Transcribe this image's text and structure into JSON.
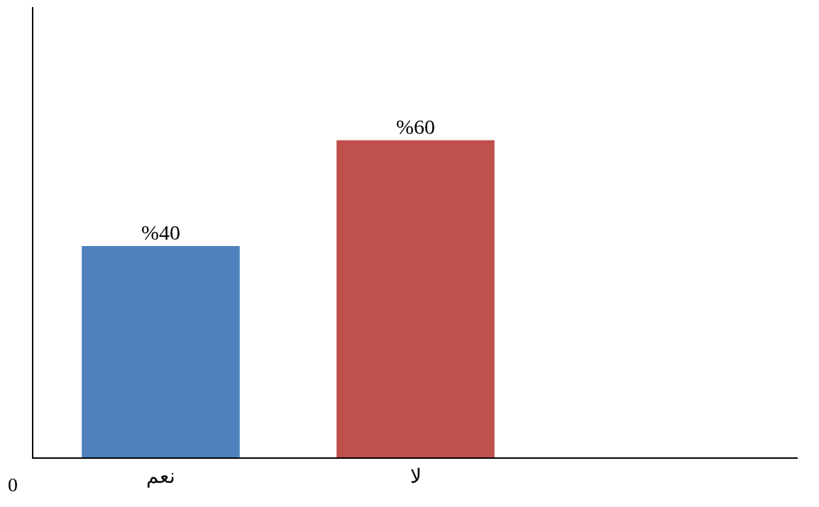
{
  "chart_data": {
    "type": "bar",
    "categories": [
      "نعم",
      "لا",
      null
    ],
    "values": [
      40,
      60,
      null
    ],
    "colors": [
      "#4f81bd",
      "#c0504d",
      "#000000"
    ],
    "value_labels": [
      "%40",
      "%60",
      null
    ],
    "annotations": [
      "0"
    ],
    "legend": false
  }
}
